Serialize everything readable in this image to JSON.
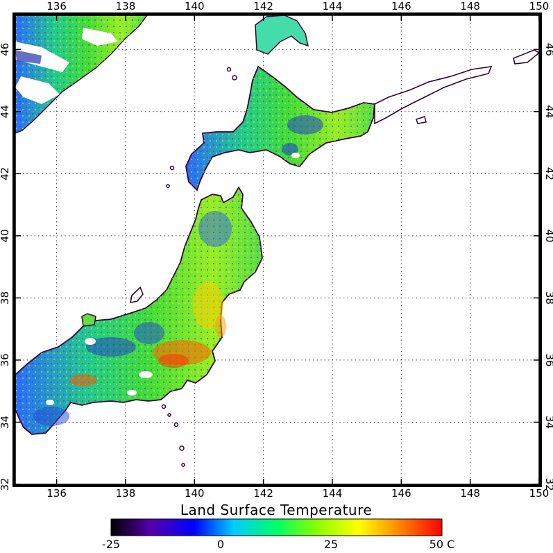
{
  "map": {
    "lon_ticks": [
      "136",
      "138",
      "140",
      "142",
      "144",
      "146",
      "148",
      "150"
    ],
    "lat_ticks": [
      "32",
      "34",
      "36",
      "38",
      "40",
      "42",
      "44",
      "46"
    ],
    "lon_range": [
      134.8,
      150
    ],
    "lat_range": [
      32,
      47.1
    ],
    "gridlines": "dotted",
    "colors": {
      "land_mid": "#33dd33",
      "land_cool": "#2255ff",
      "land_warm": "#ffdd00",
      "land_hot": "#ff4400",
      "cloud": "#ffffff",
      "coast": "#330033"
    }
  },
  "colorbar": {
    "title": "Land Surface Temperature",
    "labels": [
      "-25",
      "0",
      "25",
      "50 C"
    ],
    "range": [
      -25,
      50
    ],
    "stops": [
      "#000000",
      "#5500aa",
      "#0000ff",
      "#00ccff",
      "#00ff66",
      "#88ff00",
      "#ffff00",
      "#ff8800",
      "#ff0000"
    ]
  }
}
